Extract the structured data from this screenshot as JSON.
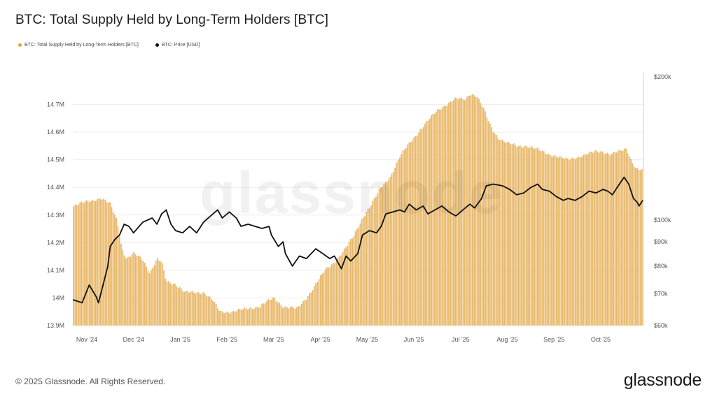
{
  "header": {
    "title": "BTC: Total Supply Held by Long-Term Holders [BTC]"
  },
  "legend": [
    {
      "label": "BTC: Total Supply Held by Long-Term Holders [BTC]",
      "color": "#e8a33c"
    },
    {
      "label": "BTC: Price [USD]",
      "color": "#111111"
    }
  ],
  "watermark": "glassnode",
  "footer": {
    "copyright": "© 2025 Glassnode. All Rights Reserved.",
    "brand": "glassnode"
  },
  "chart_data": {
    "type": "bar",
    "colors": {
      "supply": "#e8b86a",
      "price": "#111111",
      "grid": "#eeeeee"
    },
    "x_range": [
      0,
      12.2
    ],
    "x_ticks": [
      {
        "label": "Nov '24",
        "pos": 0.3
      },
      {
        "label": "Dec '24",
        "pos": 1.3
      },
      {
        "label": "Jan '25",
        "pos": 2.3
      },
      {
        "label": "Feb '25",
        "pos": 3.3
      },
      {
        "label": "Mar '25",
        "pos": 4.3
      },
      {
        "label": "Apr '25",
        "pos": 5.3
      },
      {
        "label": "May '25",
        "pos": 6.3
      },
      {
        "label": "Jun '25",
        "pos": 7.3
      },
      {
        "label": "Jul '25",
        "pos": 8.3
      },
      {
        "label": "Aug '25",
        "pos": 9.3
      },
      {
        "label": "Sep '25",
        "pos": 10.3
      },
      {
        "label": "Oct '25",
        "pos": 11.3
      }
    ],
    "y_left": {
      "min": 13.9,
      "max": 14.8,
      "ticks": [
        {
          "label": "13.9M",
          "value": 13.9
        },
        {
          "label": "14M",
          "value": 14.0
        },
        {
          "label": "14.1M",
          "value": 14.1
        },
        {
          "label": "14.2M",
          "value": 14.2
        },
        {
          "label": "14.3M",
          "value": 14.3
        },
        {
          "label": "14.4M",
          "value": 14.4
        },
        {
          "label": "14.5M",
          "value": 14.5
        },
        {
          "label": "14.6M",
          "value": 14.6
        },
        {
          "label": "14.7M",
          "value": 14.7
        }
      ]
    },
    "y_right": {
      "scale": "log",
      "min": 60000,
      "max": 200000,
      "ticks": [
        {
          "label": "$60k",
          "value": 60000
        },
        {
          "label": "$70k",
          "value": 70000
        },
        {
          "label": "$80k",
          "value": 80000
        },
        {
          "label": "$90k",
          "value": 90000
        },
        {
          "label": "$100k",
          "value": 100000
        },
        {
          "label": "$200k",
          "value": 200000
        }
      ]
    },
    "series": [
      {
        "name": "BTC: Total Supply Held by Long-Term Holders [BTC]",
        "axis": "left",
        "points": [
          [
            0.0,
            14.33
          ],
          [
            0.3,
            14.35
          ],
          [
            0.6,
            14.36
          ],
          [
            0.8,
            14.34
          ],
          [
            0.95,
            14.28
          ],
          [
            1.05,
            14.18
          ],
          [
            1.15,
            14.14
          ],
          [
            1.3,
            14.16
          ],
          [
            1.5,
            14.14
          ],
          [
            1.65,
            14.09
          ],
          [
            1.8,
            14.14
          ],
          [
            1.9,
            14.13
          ],
          [
            2.0,
            14.06
          ],
          [
            2.2,
            14.05
          ],
          [
            2.4,
            14.02
          ],
          [
            2.6,
            14.02
          ],
          [
            2.8,
            14.02
          ],
          [
            3.0,
            13.99
          ],
          [
            3.15,
            13.95
          ],
          [
            3.4,
            13.95
          ],
          [
            3.7,
            13.96
          ],
          [
            4.0,
            13.97
          ],
          [
            4.3,
            14.0
          ],
          [
            4.5,
            13.97
          ],
          [
            4.8,
            13.96
          ],
          [
            5.0,
            14.0
          ],
          [
            5.2,
            14.05
          ],
          [
            5.4,
            14.1
          ],
          [
            5.6,
            14.13
          ],
          [
            5.8,
            14.17
          ],
          [
            6.0,
            14.22
          ],
          [
            6.2,
            14.29
          ],
          [
            6.4,
            14.34
          ],
          [
            6.6,
            14.4
          ],
          [
            6.8,
            14.44
          ],
          [
            7.0,
            14.51
          ],
          [
            7.2,
            14.56
          ],
          [
            7.4,
            14.6
          ],
          [
            7.6,
            14.64
          ],
          [
            7.8,
            14.68
          ],
          [
            8.0,
            14.7
          ],
          [
            8.2,
            14.72
          ],
          [
            8.4,
            14.72
          ],
          [
            8.5,
            14.74
          ],
          [
            8.65,
            14.73
          ],
          [
            8.8,
            14.68
          ],
          [
            8.95,
            14.62
          ],
          [
            9.1,
            14.58
          ],
          [
            9.3,
            14.56
          ],
          [
            9.5,
            14.55
          ],
          [
            9.7,
            14.55
          ],
          [
            9.9,
            14.54
          ],
          [
            10.05,
            14.53
          ],
          [
            10.2,
            14.52
          ],
          [
            10.4,
            14.51
          ],
          [
            10.6,
            14.5
          ],
          [
            10.8,
            14.51
          ],
          [
            11.0,
            14.52
          ],
          [
            11.2,
            14.53
          ],
          [
            11.35,
            14.53
          ],
          [
            11.5,
            14.52
          ],
          [
            11.7,
            14.53
          ],
          [
            11.85,
            14.54
          ],
          [
            11.95,
            14.5
          ],
          [
            12.05,
            14.47
          ],
          [
            12.2,
            14.46
          ]
        ]
      },
      {
        "name": "BTC: Price [USD]",
        "axis": "right",
        "points": [
          [
            0.0,
            68000
          ],
          [
            0.2,
            67000
          ],
          [
            0.35,
            73000
          ],
          [
            0.5,
            69000
          ],
          [
            0.55,
            67000
          ],
          [
            0.75,
            80000
          ],
          [
            0.8,
            88000
          ],
          [
            0.9,
            91000
          ],
          [
            1.0,
            93000
          ],
          [
            1.1,
            98000
          ],
          [
            1.2,
            97000
          ],
          [
            1.3,
            94000
          ],
          [
            1.5,
            99000
          ],
          [
            1.7,
            101000
          ],
          [
            1.8,
            98000
          ],
          [
            1.9,
            103000
          ],
          [
            2.0,
            105000
          ],
          [
            2.1,
            98000
          ],
          [
            2.2,
            95000
          ],
          [
            2.35,
            94000
          ],
          [
            2.5,
            97000
          ],
          [
            2.65,
            94000
          ],
          [
            2.8,
            99000
          ],
          [
            2.95,
            102000
          ],
          [
            3.1,
            105000
          ],
          [
            3.2,
            101000
          ],
          [
            3.35,
            104000
          ],
          [
            3.5,
            101000
          ],
          [
            3.6,
            97000
          ],
          [
            3.75,
            98000
          ],
          [
            3.9,
            97000
          ],
          [
            4.05,
            96000
          ],
          [
            4.2,
            97000
          ],
          [
            4.25,
            93000
          ],
          [
            4.4,
            88000
          ],
          [
            4.5,
            90000
          ],
          [
            4.55,
            85000
          ],
          [
            4.7,
            80000
          ],
          [
            4.85,
            84000
          ],
          [
            5.0,
            83000
          ],
          [
            5.2,
            87000
          ],
          [
            5.35,
            85000
          ],
          [
            5.5,
            83000
          ],
          [
            5.6,
            84000
          ],
          [
            5.75,
            79000
          ],
          [
            5.85,
            84000
          ],
          [
            5.95,
            82000
          ],
          [
            6.1,
            85000
          ],
          [
            6.2,
            93000
          ],
          [
            6.35,
            95000
          ],
          [
            6.5,
            94000
          ],
          [
            6.6,
            97000
          ],
          [
            6.7,
            103000
          ],
          [
            6.85,
            104000
          ],
          [
            7.0,
            105000
          ],
          [
            7.1,
            104000
          ],
          [
            7.2,
            108000
          ],
          [
            7.35,
            105000
          ],
          [
            7.5,
            107000
          ],
          [
            7.6,
            103000
          ],
          [
            7.75,
            105000
          ],
          [
            7.9,
            107000
          ],
          [
            8.05,
            104000
          ],
          [
            8.2,
            102000
          ],
          [
            8.35,
            105000
          ],
          [
            8.5,
            108000
          ],
          [
            8.6,
            106000
          ],
          [
            8.75,
            111000
          ],
          [
            8.85,
            118000
          ],
          [
            9.0,
            119000
          ],
          [
            9.2,
            118000
          ],
          [
            9.35,
            116000
          ],
          [
            9.5,
            113000
          ],
          [
            9.65,
            114000
          ],
          [
            9.8,
            117000
          ],
          [
            9.95,
            119000
          ],
          [
            10.05,
            116000
          ],
          [
            10.2,
            115000
          ],
          [
            10.35,
            112000
          ],
          [
            10.5,
            110000
          ],
          [
            10.6,
            111000
          ],
          [
            10.75,
            110000
          ],
          [
            10.9,
            112000
          ],
          [
            11.05,
            115000
          ],
          [
            11.2,
            114000
          ],
          [
            11.35,
            116000
          ],
          [
            11.45,
            115000
          ],
          [
            11.55,
            113000
          ],
          [
            11.65,
            117000
          ],
          [
            11.8,
            123000
          ],
          [
            11.9,
            119000
          ],
          [
            12.0,
            111000
          ],
          [
            12.08,
            109000
          ],
          [
            12.12,
            107000
          ],
          [
            12.2,
            110000
          ]
        ]
      }
    ],
    "grid": true,
    "legend_position": "top-left"
  }
}
